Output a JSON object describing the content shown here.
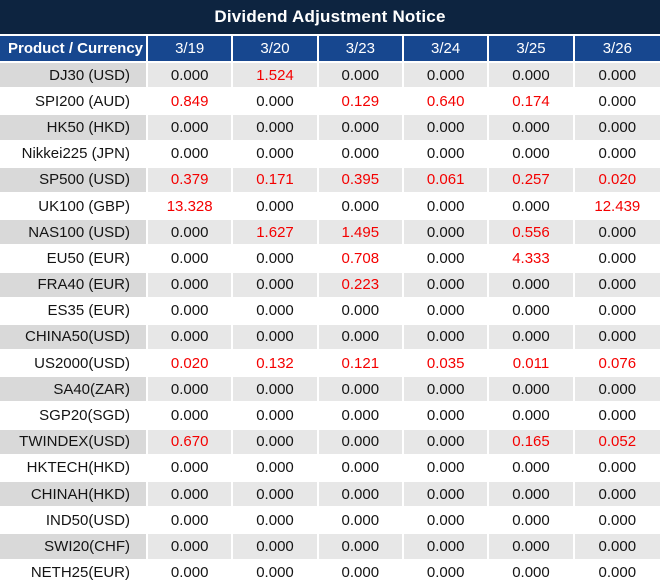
{
  "title": "Dividend Adjustment Notice",
  "table": {
    "columns": [
      "Product / Currency",
      "3/19",
      "3/20",
      "3/23",
      "3/24",
      "3/25",
      "3/26"
    ],
    "rows": [
      {
        "product": "DJ30 (USD)",
        "values": [
          "0.000",
          "1.524",
          "0.000",
          "0.000",
          "0.000",
          "0.000"
        ]
      },
      {
        "product": "SPI200 (AUD)",
        "values": [
          "0.849",
          "0.000",
          "0.129",
          "0.640",
          "0.174",
          "0.000"
        ]
      },
      {
        "product": "HK50 (HKD)",
        "values": [
          "0.000",
          "0.000",
          "0.000",
          "0.000",
          "0.000",
          "0.000"
        ]
      },
      {
        "product": "Nikkei225 (JPN)",
        "values": [
          "0.000",
          "0.000",
          "0.000",
          "0.000",
          "0.000",
          "0.000"
        ]
      },
      {
        "product": "SP500 (USD)",
        "values": [
          "0.379",
          "0.171",
          "0.395",
          "0.061",
          "0.257",
          "0.020"
        ]
      },
      {
        "product": "UK100 (GBP)",
        "values": [
          "13.328",
          "0.000",
          "0.000",
          "0.000",
          "0.000",
          "12.439"
        ]
      },
      {
        "product": "NAS100 (USD)",
        "values": [
          "0.000",
          "1.627",
          "1.495",
          "0.000",
          "0.556",
          "0.000"
        ]
      },
      {
        "product": "EU50 (EUR)",
        "values": [
          "0.000",
          "0.000",
          "0.708",
          "0.000",
          "4.333",
          "0.000"
        ]
      },
      {
        "product": "FRA40 (EUR)",
        "values": [
          "0.000",
          "0.000",
          "0.223",
          "0.000",
          "0.000",
          "0.000"
        ]
      },
      {
        "product": "ES35 (EUR)",
        "values": [
          "0.000",
          "0.000",
          "0.000",
          "0.000",
          "0.000",
          "0.000"
        ]
      },
      {
        "product": "CHINA50(USD)",
        "values": [
          "0.000",
          "0.000",
          "0.000",
          "0.000",
          "0.000",
          "0.000"
        ]
      },
      {
        "product": "US2000(USD)",
        "values": [
          "0.020",
          "0.132",
          "0.121",
          "0.035",
          "0.011",
          "0.076"
        ]
      },
      {
        "product": "SA40(ZAR)",
        "values": [
          "0.000",
          "0.000",
          "0.000",
          "0.000",
          "0.000",
          "0.000"
        ]
      },
      {
        "product": "SGP20(SGD)",
        "values": [
          "0.000",
          "0.000",
          "0.000",
          "0.000",
          "0.000",
          "0.000"
        ]
      },
      {
        "product": "TWINDEX(USD)",
        "values": [
          "0.670",
          "0.000",
          "0.000",
          "0.000",
          "0.165",
          "0.052"
        ]
      },
      {
        "product": "HKTECH(HKD)",
        "values": [
          "0.000",
          "0.000",
          "0.000",
          "0.000",
          "0.000",
          "0.000"
        ]
      },
      {
        "product": "CHINAH(HKD)",
        "values": [
          "0.000",
          "0.000",
          "0.000",
          "0.000",
          "0.000",
          "0.000"
        ]
      },
      {
        "product": "IND50(USD)",
        "values": [
          "0.000",
          "0.000",
          "0.000",
          "0.000",
          "0.000",
          "0.000"
        ]
      },
      {
        "product": "SWI20(CHF)",
        "values": [
          "0.000",
          "0.000",
          "0.000",
          "0.000",
          "0.000",
          "0.000"
        ]
      },
      {
        "product": "NETH25(EUR)",
        "values": [
          "0.000",
          "0.000",
          "0.000",
          "0.000",
          "0.000",
          "0.000"
        ]
      }
    ]
  },
  "colors": {
    "title_bg": "#0d2440",
    "header_bg": "#17478f",
    "grid_line": "#ffffff",
    "row_label_gray": "#d9d9d9",
    "row_value_gray": "#e7e7e7",
    "row_white": "#ffffff",
    "value_red": "#f40000",
    "text_dark": "#141414",
    "header_text": "#ffffff"
  }
}
